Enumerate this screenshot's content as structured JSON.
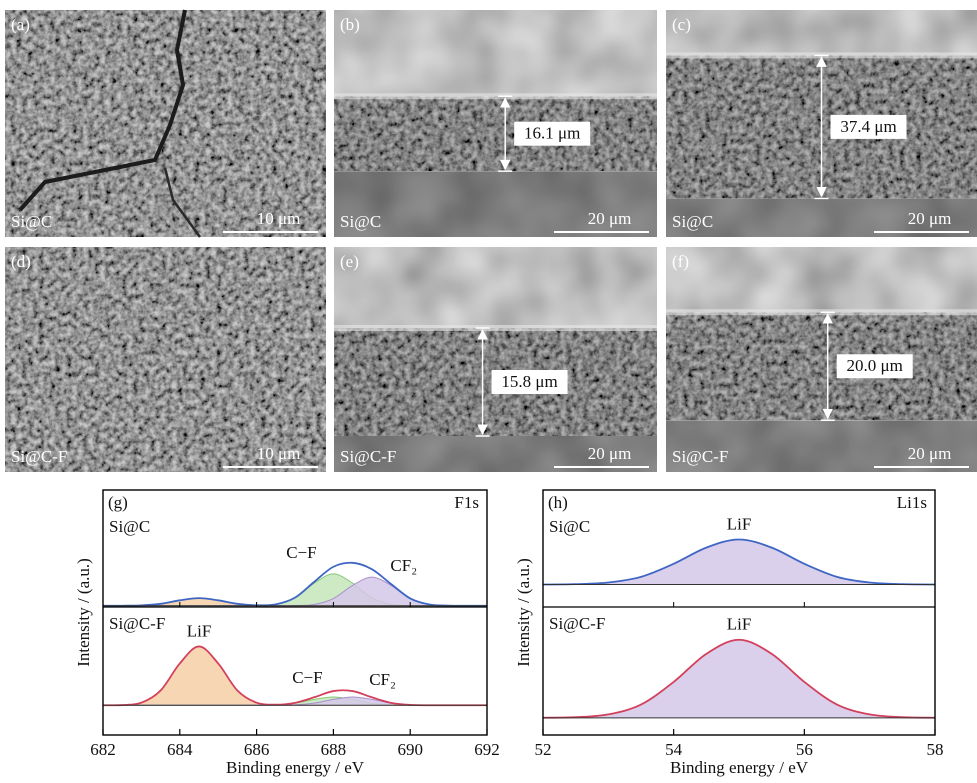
{
  "images": [
    {
      "label": "(a)",
      "sample": "Si@C",
      "scale_bar": "10 μm"
    },
    {
      "label": "(b)",
      "sample": "Si@C",
      "scale_bar": "20 μm",
      "thickness": "16.1 μm"
    },
    {
      "label": "(c)",
      "sample": "Si@C",
      "scale_bar": "20 μm",
      "thickness": "37.4 μm"
    },
    {
      "label": "(d)",
      "sample": "Si@C-F",
      "scale_bar": "10 μm"
    },
    {
      "label": "(e)",
      "sample": "Si@C-F",
      "scale_bar": "20 μm",
      "thickness": "15.8 μm"
    },
    {
      "label": "(f)",
      "sample": "Si@C-F",
      "scale_bar": "20 μm",
      "thickness": "20.0 μm"
    }
  ],
  "chart_data": [
    {
      "type": "line",
      "panel_label": "(g)",
      "title": "F1s",
      "x_label": "Binding energy / eV",
      "y_label": "Intensity / (a.u.)",
      "xlim": [
        682,
        692
      ],
      "xticks": [
        682,
        684,
        686,
        688,
        690,
        692
      ],
      "x": [
        682,
        682.5,
        683,
        683.5,
        684,
        684.5,
        685,
        685.5,
        686,
        686.5,
        687,
        687.5,
        688,
        688.5,
        689,
        689.5,
        690,
        690.5,
        691,
        691.5,
        692
      ],
      "subplots": [
        {
          "name": "Si@C",
          "ylim": [
            -0.02,
            1.82
          ],
          "series": [
            {
              "color": "#e3a064",
              "fill": "#f6cfa6",
              "values": [
                0,
                0,
                0.005,
                0.03,
                0.085,
                0.12,
                0.085,
                0.03,
                0.005,
                0,
                0,
                0,
                0,
                0,
                0,
                0,
                0,
                0,
                0,
                0,
                0
              ]
            },
            {
              "name": "C−F",
              "color": "#86c878",
              "fill": "#c4e6bb",
              "values": [
                0,
                0,
                0,
                0,
                0,
                0,
                0,
                0,
                0.002,
                0.022,
                0.125,
                0.355,
                0.5,
                0.355,
                0.125,
                0.022,
                0.002,
                0,
                0,
                0,
                0
              ]
            },
            {
              "name": "CF₂",
              "color": "#a88fcc",
              "fill": "#d5c8e8",
              "values": [
                0,
                0,
                0,
                0,
                0,
                0,
                0,
                0,
                0,
                0,
                0.002,
                0.02,
                0.113,
                0.32,
                0.45,
                0.32,
                0.113,
                0.02,
                0.002,
                0,
                0
              ]
            },
            {
              "color": "#3f66c4",
              "values": [
                0,
                0,
                0.005,
                0.03,
                0.085,
                0.12,
                0.085,
                0.03,
                0.007,
                0.022,
                0.127,
                0.375,
                0.613,
                0.675,
                0.575,
                0.342,
                0.115,
                0.02,
                0.002,
                0,
                0
              ]
            }
          ]
        },
        {
          "name": "Si@C-F",
          "ylim": [
            -0.43,
            1.42
          ],
          "series": [
            {
              "name": "LiF",
              "color": "#e3a064",
              "fill": "#f6cfa6",
              "values": [
                0,
                0.003,
                0.037,
                0.213,
                0.604,
                0.85,
                0.604,
                0.213,
                0.037,
                0.003,
                0,
                0,
                0,
                0,
                0,
                0,
                0,
                0,
                0,
                0,
                0
              ]
            },
            {
              "name": "C−F",
              "color": "#86c878",
              "fill": "#c4e6bb",
              "values": [
                0,
                0,
                0,
                0,
                0,
                0,
                0,
                0,
                0,
                0.005,
                0.03,
                0.085,
                0.12,
                0.085,
                0.03,
                0.005,
                0,
                0,
                0,
                0,
                0
              ]
            },
            {
              "name": "CF₂",
              "color": "#a88fcc",
              "fill": "#d5c8e8",
              "values": [
                0,
                0,
                0,
                0,
                0,
                0,
                0,
                0,
                0,
                0,
                0.005,
                0.03,
                0.085,
                0.12,
                0.085,
                0.03,
                0.005,
                0,
                0,
                0,
                0
              ]
            },
            {
              "color": "#d3405c",
              "values": [
                0,
                0.003,
                0.037,
                0.213,
                0.604,
                0.85,
                0.604,
                0.213,
                0.037,
                0.008,
                0.035,
                0.115,
                0.205,
                0.205,
                0.115,
                0.035,
                0.005,
                0,
                0,
                0,
                0
              ]
            }
          ]
        }
      ]
    },
    {
      "type": "line",
      "panel_label": "(h)",
      "title": "Li1s",
      "x_label": "Binding energy / eV",
      "y_label": "Intensity / (a.u.)",
      "xlim": [
        52,
        58
      ],
      "xticks": [
        52,
        54,
        56,
        58
      ],
      "x": [
        52,
        52.5,
        53,
        53.5,
        54,
        54.5,
        55,
        55.5,
        56,
        56.5,
        57,
        57.5,
        58
      ],
      "subplots": [
        {
          "name": "Si@C",
          "ylim": [
            -0.25,
            1.05
          ],
          "series": [
            {
              "name": "LiF",
              "color": "#a88fcc",
              "fill": "#d5c8e8",
              "values": [
                0,
                0.004,
                0.022,
                0.085,
                0.23,
                0.41,
                0.5,
                0.41,
                0.23,
                0.085,
                0.022,
                0.004,
                0
              ]
            },
            {
              "color": "#3f66c4",
              "values": [
                0,
                0.004,
                0.022,
                0.085,
                0.23,
                0.41,
                0.5,
                0.41,
                0.23,
                0.085,
                0.022,
                0.004,
                0
              ]
            }
          ]
        },
        {
          "name": "Si@C-F",
          "ylim": [
            -0.22,
            1.42
          ],
          "series": [
            {
              "name": "LiF",
              "color": "#a88fcc",
              "fill": "#d5c8e8",
              "values": [
                0.001,
                0.008,
                0.044,
                0.17,
                0.46,
                0.82,
                1,
                0.82,
                0.46,
                0.17,
                0.044,
                0.008,
                0.001
              ]
            },
            {
              "color": "#d3405c",
              "values": [
                0.001,
                0.008,
                0.044,
                0.17,
                0.46,
                0.82,
                1,
                0.82,
                0.46,
                0.17,
                0.044,
                0.008,
                0.001
              ]
            }
          ]
        }
      ]
    }
  ]
}
